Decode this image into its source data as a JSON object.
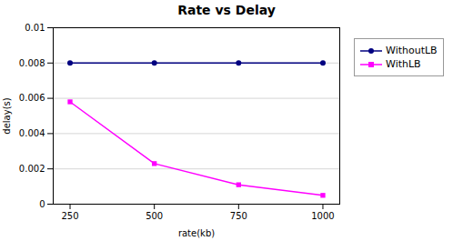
{
  "chart_data": {
    "type": "line",
    "title": "Rate vs Delay",
    "x_label": "rate(kb)",
    "y_label": "delay(s)",
    "x": [
      250,
      500,
      750,
      1000
    ],
    "series": [
      {
        "name": "WithoutLB",
        "color": "#000080",
        "marker": "circle",
        "values": [
          0.008,
          0.008,
          0.008,
          0.008
        ]
      },
      {
        "name": "WithLB",
        "color": "#FF00FF",
        "marker": "square",
        "values": [
          0.0058,
          0.0023,
          0.0011,
          0.0005
        ]
      }
    ],
    "xlim": [
      200,
      1050
    ],
    "xticks": [
      250,
      500,
      750,
      1000
    ],
    "ylim": [
      0,
      0.01
    ],
    "yticks": [
      0,
      0.002,
      0.004,
      0.006,
      0.008,
      0.01
    ],
    "grid": true,
    "legend": "right"
  }
}
